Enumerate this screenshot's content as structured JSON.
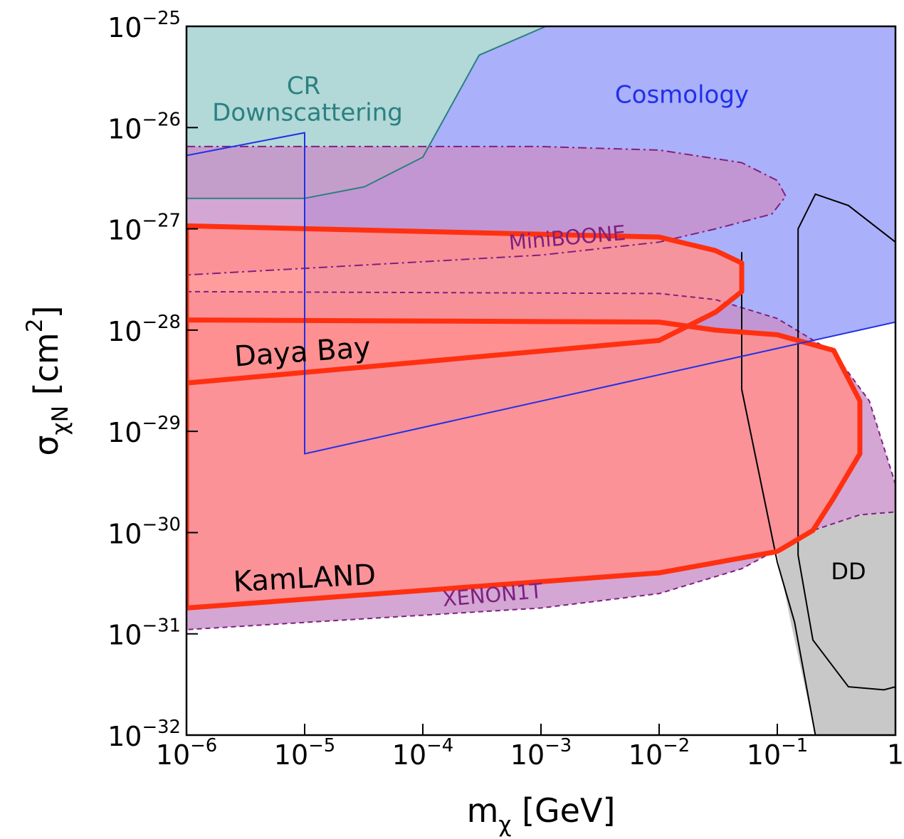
{
  "chart_data": {
    "type": "region",
    "x_label": "mχ [GeV]",
    "y_label": "σχN [cm2]",
    "xscale": "log",
    "yscale": "log",
    "xlim": [
      1e-06,
      1
    ],
    "ylim": [
      1e-32,
      1e-25
    ],
    "xticks": [
      {
        "value": 1e-06,
        "label": "10−6"
      },
      {
        "value": 1e-05,
        "label": "10−5"
      },
      {
        "value": 0.0001,
        "label": "10−4"
      },
      {
        "value": 0.001,
        "label": "10−3"
      },
      {
        "value": 0.01,
        "label": "10−2"
      },
      {
        "value": 0.1,
        "label": "10−1"
      },
      1
    ],
    "yticks": [
      {
        "value": 1e-32,
        "label": "10−32"
      },
      {
        "value": 1e-31,
        "label": "10−31"
      },
      {
        "value": 1e-30,
        "label": "10−30"
      },
      {
        "value": 1e-29,
        "label": "10−29"
      },
      {
        "value": 1e-28,
        "label": "10−28"
      },
      {
        "value": 1e-27,
        "label": "10−27"
      },
      {
        "value": 1e-26,
        "label": "10−26"
      },
      {
        "value": 1e-25,
        "label": "10−25"
      }
    ],
    "series": [
      {
        "name": "Cosmology",
        "color": "#aab0fa",
        "edge": "#2030e8",
        "line": "thin",
        "x": [
          1e-06,
          1e-05,
          1e-05,
          1,
          1,
          1e-06
        ],
        "values": [
          5.3e-27,
          8.9e-27,
          6e-30,
          1.2e-28,
          1e-25,
          1e-25
        ]
      },
      {
        "name": "CR Downscattering",
        "color": "#b2d8d8",
        "edge": "#2a8080",
        "line": "thin",
        "x": [
          1e-06,
          1e-05,
          3.2e-05,
          0.0001,
          0.0003,
          0.0011,
          1e-06
        ],
        "values": [
          2e-27,
          2e-27,
          2.6e-27,
          5.1e-27,
          5.2e-26,
          1e-25,
          1e-25
        ]
      },
      {
        "name": "MiniBOONE",
        "color": "#c890c8",
        "edge": "#802080",
        "line": "dashdot",
        "x": [
          1e-06,
          0.001,
          0.01,
          0.05,
          0.1,
          0.118,
          0.09,
          0.03,
          0.01,
          0.001,
          1e-06
        ],
        "values": [
          6.5e-27,
          6.5e-27,
          6e-27,
          4.5e-27,
          3e-27,
          2.1e-27,
          1.4e-27,
          1e-27,
          7.4e-28,
          5.5e-28,
          3.5e-28
        ]
      },
      {
        "name": "XENON1T",
        "color": "#c890c8",
        "edge": "#802080",
        "line": "dashed",
        "x": [
          1e-06,
          0.01,
          0.03,
          0.1,
          0.3,
          0.6,
          1,
          1,
          0.5,
          0.2,
          0.05,
          0.01,
          0.001,
          1e-06
        ],
        "values": [
          2.4e-28,
          2.3e-28,
          2e-28,
          1.3e-28,
          6e-29,
          2e-29,
          3e-30,
          1.6e-30,
          1.5e-30,
          1.05e-30,
          4.4e-31,
          2.5e-31,
          1.8e-31,
          1.1e-31
        ]
      },
      {
        "name": "DD",
        "color": "#c8c8c8",
        "edge": "#000000",
        "line": "contour",
        "x": [
          0.21,
          0.13,
          0.1,
          0.2,
          0.5,
          1,
          1
        ],
        "values": [
          1e-32,
          1.3e-31,
          6e-31,
          1.05e-30,
          1.5e-30,
          1.6e-30,
          1e-32
        ],
        "lines": [
          {
            "x": [
              0.05,
              0.05,
              0.1,
              0.14,
              0.21
            ],
            "values": [
              5.9e-28,
              2.6e-29,
              5.1e-31,
              1.3e-31,
              1e-32
            ]
          },
          {
            "x": [
              1,
              0.4,
              0.21,
              0.15,
              0.15,
              0.2,
              0.4,
              0.8,
              1
            ],
            "values": [
              7.4e-28,
              1.7e-27,
              2.2e-27,
              1e-27,
              6e-31,
              8.7e-32,
              3e-32,
              2.8e-32,
              3e-32
            ]
          }
        ]
      },
      {
        "name": "KamLAND",
        "color": "#ff9090",
        "edge": "#ff3010",
        "line": "thick",
        "x": [
          1e-06,
          0.01,
          0.03,
          0.1,
          0.3,
          0.5,
          0.5,
          0.3,
          0.2,
          0.1,
          0.01,
          1e-06
        ],
        "values": [
          1.26e-28,
          1.2e-28,
          1e-28,
          9e-29,
          6.3e-29,
          2e-29,
          6e-30,
          2.2e-30,
          1.05e-30,
          6.5e-31,
          4e-31,
          1.8e-31
        ]
      },
      {
        "name": "Daya Bay",
        "color": "#ff9090",
        "edge": "#ff3010",
        "line": "thick",
        "x": [
          1e-06,
          0.01,
          0.03,
          0.05,
          0.05,
          0.03,
          0.01,
          1e-06
        ],
        "values": [
          1.07e-27,
          8.3e-28,
          6.1e-28,
          4.6e-28,
          2.4e-28,
          1.5e-28,
          7.9e-29,
          3e-29
        ]
      }
    ]
  }
}
